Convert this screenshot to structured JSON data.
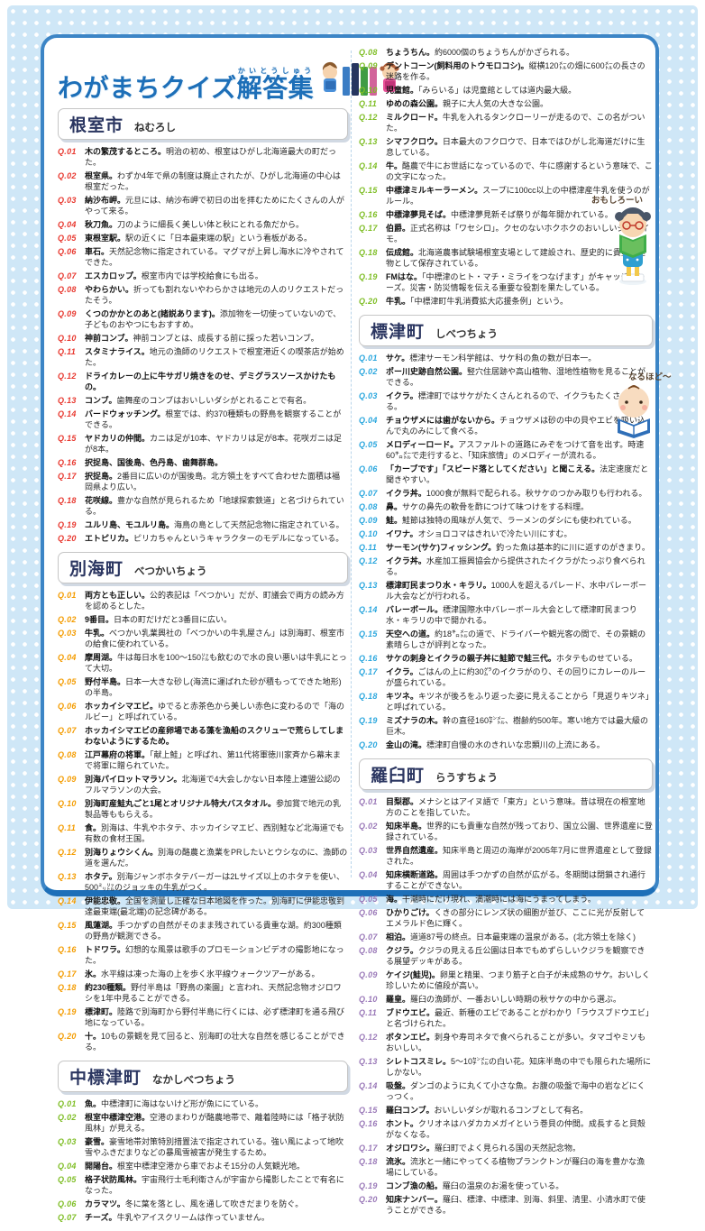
{
  "page_title": {
    "main": "わがまちクイズ",
    "ruby_base": "解答集",
    "ruby_text": "かいとうしゅう"
  },
  "mascots": {
    "girl_speech": "おもしろーい",
    "baby_speech": "なるほど〜"
  },
  "colors": {
    "panel_border": "#3c85c6",
    "title_blue": "#1d6fb8",
    "nemuro_red": "#e8382f",
    "betsukai_orange": "#f49c00",
    "nakashibetsu_green": "#7fbe26",
    "shibetsu_blue": "#2ba7de",
    "rausu_purple": "#9a79b8"
  },
  "sections": [
    {
      "name": "根室市",
      "reading": "ねむろし",
      "color": "#e8382f",
      "items": [
        {
          "no": "Q.01",
          "answer": "木の繁茂するところ。",
          "detail": "明治の初め、根室はひがし北海道最大の町だった。"
        },
        {
          "no": "Q.02",
          "answer": "根室県。",
          "detail": "わずか4年で県の制度は廃止されたが、ひがし北海道の中心は根室だった。"
        },
        {
          "no": "Q.03",
          "answer": "納沙布岬。",
          "detail": "元旦には、納沙布岬で初日の出を拝むためにたくさんの人がやって来る。"
        },
        {
          "no": "Q.04",
          "answer": "秋刀魚。",
          "detail": "刀のように細長く美しい体と秋にとれる魚だから。"
        },
        {
          "no": "Q.05",
          "answer": "東根室駅。",
          "detail": "駅の近くに「日本最東端の駅」という看板がある。"
        },
        {
          "no": "Q.06",
          "answer": "車石。",
          "detail": "天然記念物に指定されている。マグマが上昇し海水に冷やされてできた。"
        },
        {
          "no": "Q.07",
          "answer": "エスカロップ。",
          "detail": "根室市内では学校給食にも出る。"
        },
        {
          "no": "Q.08",
          "answer": "やわらかい。",
          "detail": "折っても割れないやわらかさは地元の人のリクエストだったそう。"
        },
        {
          "no": "Q.09",
          "answer": "くつのかかとのあと(諸説あります)。",
          "detail": "添加物を一切使っていないので、子どものおやつにもおすすめ。"
        },
        {
          "no": "Q.10",
          "answer": "神前コンブ。",
          "detail": "神前コンブとは、成長する前に採った若いコンブ。"
        },
        {
          "no": "Q.11",
          "answer": "スタミナライス。",
          "detail": "地元の漁師のリクエストで根室港近くの喫茶店が始めた。"
        },
        {
          "no": "Q.12",
          "answer": "ドライカレーの上に牛サガリ焼きをのせ、デミグラスソースかけたもの。",
          "detail": ""
        },
        {
          "no": "Q.13",
          "answer": "コンブ。",
          "detail": "歯舞産のコンブはおいしいダシがとれることで有名。"
        },
        {
          "no": "Q.14",
          "answer": "バードウォッチング。",
          "detail": "根室では、約370種類もの野鳥を観察することができる。"
        },
        {
          "no": "Q.15",
          "answer": "ヤドカリの仲間。",
          "detail": "カニは足が10本、ヤドカリは足が8本。花咲ガニは足が8本。"
        },
        {
          "no": "Q.16",
          "answer": "択捉島、国後島、色丹島、歯舞群島。",
          "detail": ""
        },
        {
          "no": "Q.17",
          "answer": "択捉島。",
          "detail": "2番目に広いのが国後島。北方領土をすべて合わせた面積は福岡県より広い。"
        },
        {
          "no": "Q.18",
          "answer": "花咲線。",
          "detail": "豊かな自然が見られるため「地球探索鉄道」と名づけられている。"
        },
        {
          "no": "Q.19",
          "answer": "ユルリ島、モユルリ島。",
          "detail": "海鳥の島として天然記念物に指定されている。"
        },
        {
          "no": "Q.20",
          "answer": "エトピリカ。",
          "detail": "ピリカちゃんというキャラクターのモデルになっている。"
        }
      ]
    },
    {
      "name": "別海町",
      "reading": "べつかいちょう",
      "color": "#f49c00",
      "items": [
        {
          "no": "Q.01",
          "answer": "両方とも正しい。",
          "detail": "公的表記は「べつかい」だが、町議会で両方の読み方を認めるとした。"
        },
        {
          "no": "Q.02",
          "answer": "9番目。",
          "detail": "日本の町だけだと3番目に広い。"
        },
        {
          "no": "Q.03",
          "answer": "牛乳。",
          "detail": "べつかい乳業興社の「べつかいの牛乳屋さん」は別海町、根室市の給食に使われている。"
        },
        {
          "no": "Q.04",
          "answer": "摩周湖。",
          "detail": "牛は毎日水を100〜150㍑も飲むので水の良い悪いは牛乳にとって大切。"
        },
        {
          "no": "Q.05",
          "answer": "野付半島。",
          "detail": "日本一大きな砂し(海流に運ばれた砂が積もってできた地形)の半島。"
        },
        {
          "no": "Q.06",
          "answer": "ホッカイシマエビ。",
          "detail": "ゆでると赤茶色から美しい赤色に変わるので「海のルビー」と呼ばれている。"
        },
        {
          "no": "Q.07",
          "answer": "ホッカイシマエビの産卵場である藻を漁船のスクリューで荒らしてしまわないようにするため。",
          "detail": ""
        },
        {
          "no": "Q.08",
          "answer": "江戸幕府の将軍。",
          "detail": "「献上鮭」と呼ばれ、第11代将軍徳川家斉から幕末まで将軍に贈られていた。"
        },
        {
          "no": "Q.09",
          "answer": "別海パイロットマラソン。",
          "detail": "北海道で4大会しかない日本陸上連盟公認のフルマラソンの大会。"
        },
        {
          "no": "Q.10",
          "answer": "別海町産鮭丸ごと1尾とオリジナル特大バスタオル。",
          "detail": "参加賞で地元の乳製品等ももらえる。"
        },
        {
          "no": "Q.11",
          "answer": "食。",
          "detail": "別海は、牛乳やホタテ、ホッカイシマエビ、西別鮭など北海道でも有数の食材王国。"
        },
        {
          "no": "Q.12",
          "answer": "別海りょウシくん。",
          "detail": "別海の酪農と漁業をPRしたいとウシなのに、漁師の道を選んだ。"
        },
        {
          "no": "Q.13",
          "answer": "ホタテ。",
          "detail": "別海ジャンボホタテバーガーは2Lサイズ以上のホタテを使い、500㍉㍑のジョッキの牛乳がつく。"
        },
        {
          "no": "Q.14",
          "answer": "伊能忠敬。",
          "detail": "全国を測量し正確な日本地図を作った。別海町に伊能忠敬到達最東端(最北端)の記念碑がある。"
        },
        {
          "no": "Q.15",
          "answer": "風蓮湖。",
          "detail": "手つかずの自然がそのまま残されている貴重な湖。約300種類の野鳥が観測できる。"
        },
        {
          "no": "Q.16",
          "answer": "トドワラ。",
          "detail": "幻想的な風景は歌手のプロモーションビデオの撮影地になった。"
        },
        {
          "no": "Q.17",
          "answer": "氷。",
          "detail": "水平線は凍った海の上を歩く氷平線ウォークツアーがある。"
        },
        {
          "no": "Q.18",
          "answer": "約230種類。",
          "detail": "野付半島は「野鳥の楽園」と言われ、天然記念物オジロワシを1年中見ることができる。"
        },
        {
          "no": "Q.19",
          "answer": "標津町。",
          "detail": "陸路で別海町から野付半島に行くには、必ず標津町を通る飛び地になっている。"
        },
        {
          "no": "Q.20",
          "answer": "十。",
          "detail": "10もの景観を見て回ると、別海町の壮大な自然を感じることができる。"
        }
      ]
    },
    {
      "name": "中標津町",
      "reading": "なかしべつちょう",
      "color": "#7fbe26",
      "items": [
        {
          "no": "Q.01",
          "answer": "魚。",
          "detail": "中標津町に海はないけど形が魚ににている。"
        },
        {
          "no": "Q.02",
          "answer": "根室中標津空港。",
          "detail": "空港のまわりが酪農地帯で、離着陸時には「格子状防風林」が見える。"
        },
        {
          "no": "Q.03",
          "answer": "豪雪。",
          "detail": "豪雪地帯対策特別措置法で指定されている。強い風によって地吹雪やふきだまりなどの暴風雪被害が発生するため。"
        },
        {
          "no": "Q.04",
          "answer": "開陽台。",
          "detail": "根室中標津空港から車でおよそ15分の人気観光地。"
        },
        {
          "no": "Q.05",
          "answer": "格子状防風林。",
          "detail": "宇宙飛行士毛利衛さんが宇宙から撮影したことで有名になった。"
        },
        {
          "no": "Q.06",
          "answer": "カラマツ。",
          "detail": "冬に葉を落とし、風を通して吹きだまりを防ぐ。"
        },
        {
          "no": "Q.07",
          "answer": "チーズ。",
          "detail": "牛乳やアイスクリームは作っていません。"
        },
        {
          "no": "Q.08",
          "answer": "ちょうちん。",
          "detail": "約6000個のちょうちんがかざられる。"
        },
        {
          "no": "Q.09",
          "answer": "デントコーン(飼料用のトウモロコシ)。",
          "detail": "縦横120㍍の畑に600㍍の長さの迷路を作る。"
        },
        {
          "no": "Q.10",
          "answer": "児童館。",
          "detail": "「みらいる」は児童館としては道内最大級。"
        },
        {
          "no": "Q.11",
          "answer": "ゆめの森公園。",
          "detail": "親子に大人気の大きな公園。"
        },
        {
          "no": "Q.12",
          "answer": "ミルクロード。",
          "detail": "牛乳を入れるタンクローリーが走るので、この名がついた。"
        },
        {
          "no": "Q.13",
          "answer": "シマフクロウ。",
          "detail": "日本最大のフクロウで、日本ではひがし北海道だけに生息している。"
        },
        {
          "no": "Q.14",
          "answer": "牛。",
          "detail": "酪農で牛にお世話になっているので、牛に感謝するという意味で、この文字になった。"
        },
        {
          "no": "Q.15",
          "answer": "中標津ミルキーラーメン。",
          "detail": "スープに100cc以上の中標津産牛乳を使うのがルール。"
        },
        {
          "no": "Q.16",
          "answer": "中標津夢見そば。",
          "detail": "中標津夢見新そば祭りが毎年開かれている。"
        },
        {
          "no": "Q.17",
          "answer": "伯爵。",
          "detail": "正式名称は「ワセシロ」。クセのないホクホクのおいしいジャガイモ。"
        },
        {
          "no": "Q.18",
          "answer": "伝成館。",
          "detail": "北海道農事試験場根室支場として建設され、歴史的に貴重な建物として保存されている。"
        },
        {
          "no": "Q.19",
          "answer": "FMはな。",
          "detail": "「中標津のヒト・マチ・ミライをつなげます」がキャッチフレーズ。災害・防災情報を伝える重要な役割を果たしている。"
        },
        {
          "no": "Q.20",
          "answer": "牛乳。",
          "detail": "「中標津町牛乳消費拡大応援条例」という。"
        }
      ]
    },
    {
      "name": "標津町",
      "reading": "しべつちょう",
      "color": "#2ba7de",
      "items": [
        {
          "no": "Q.01",
          "answer": "サケ。",
          "detail": "標津サーモン科学館は、サケ科の魚の数が日本一。"
        },
        {
          "no": "Q.02",
          "answer": "ポー川史跡自然公園。",
          "detail": "竪穴住居跡や高山植物、湿地性植物を見ることができる。"
        },
        {
          "no": "Q.03",
          "answer": "イクラ。",
          "detail": "標津町ではサケがたくさんとれるので、イクラもたくさんとれる。"
        },
        {
          "no": "Q.04",
          "answer": "チョウザメには歯がないから。",
          "detail": "チョウザメは砂の中の貝やエビを吸い込んで丸のみにして食べる。"
        },
        {
          "no": "Q.05",
          "answer": "メロディーロード。",
          "detail": "アスファルトの道路にみぞをつけて音を出す。時速60㌔㍍で走行すると、「知床旅情」のメロディーが流れる。"
        },
        {
          "no": "Q.06",
          "answer": "「カーブです」「スピード落としてください」と聞こえる。",
          "detail": "法定速度だと聞きやすい。"
        },
        {
          "no": "Q.07",
          "answer": "イクラ丼。",
          "detail": "1000食が無料で配られる。秋サケのつかみ取りも行われる。"
        },
        {
          "no": "Q.08",
          "answer": "鼻。",
          "detail": "サケの鼻先の軟骨を酢につけて味つけをする料理。"
        },
        {
          "no": "Q.09",
          "answer": "鮭。",
          "detail": "鮭節は独特の風味が人気で、ラーメンのダシにも使われている。"
        },
        {
          "no": "Q.10",
          "answer": "イワナ。",
          "detail": "オショロコマはきれいで冷たい川にすむ。"
        },
        {
          "no": "Q.11",
          "answer": "サーモン(サケ)フィッシング。",
          "detail": "釣った魚は基本的に川に返すのがきまり。"
        },
        {
          "no": "Q.12",
          "answer": "イクラ丼。",
          "detail": "水産加工振興協会から提供されたイクラがたっぷり食べられる。"
        },
        {
          "no": "Q.13",
          "answer": "標津町民まつり水・キラリ。",
          "detail": "1000人を超えるパレード、水中バレーボール大会などが行われる。"
        },
        {
          "no": "Q.14",
          "answer": "バレーボール。",
          "detail": "標津国際水中バレーボール大会として標津町民まつり水・キラリの中で開かれる。"
        },
        {
          "no": "Q.15",
          "answer": "天空への道。",
          "detail": "約18㌔㍍の道で、ドライバーや観光客の間で、その景観の素晴らしさが評判となった。"
        },
        {
          "no": "Q.16",
          "answer": "サケの刺身とイクラの親子丼に鮭節で鮭三代。",
          "detail": "ホタテものせている。"
        },
        {
          "no": "Q.17",
          "answer": "イクラ。",
          "detail": "ごはんの上に約30㌘のイクラがのり、その回りにカレーのルーが盛られている。"
        },
        {
          "no": "Q.18",
          "answer": "キツネ。",
          "detail": "キツネが後ろをふり返った姿に見えることから「見返りキツネ」と呼ばれている。"
        },
        {
          "no": "Q.19",
          "answer": "ミズナラの木。",
          "detail": "幹の直径160㌢㍍、樹齢約500年。寒い地方では最大級の巨木。"
        },
        {
          "no": "Q.20",
          "answer": "金山の滝。",
          "detail": "標津町自慢の水のきれいな忠類川の上流にある。"
        }
      ]
    },
    {
      "name": "羅臼町",
      "reading": "らうすちょう",
      "color": "#9a79b8",
      "items": [
        {
          "no": "Q.01",
          "answer": "目梨郡。",
          "detail": "メナシとはアイヌ語で「東方」という意味。昔は現在の根室地方のことを指していた。"
        },
        {
          "no": "Q.02",
          "answer": "知床半島。",
          "detail": "世界的にも貴重な自然が残っており、国立公園、世界遺産に登録されている。"
        },
        {
          "no": "Q.03",
          "answer": "世界自然遺産。",
          "detail": "知床半島と周辺の海岸が2005年7月に世界遺産として登録された。"
        },
        {
          "no": "Q.04",
          "answer": "知床横断道路。",
          "detail": "周囲は手つかずの自然が広がる。冬期間は閉鎖され通行することができない。"
        },
        {
          "no": "Q.05",
          "answer": "海。",
          "detail": "干潮時にだけ現れ、満潮時には海にうまってしまう。"
        },
        {
          "no": "Q.06",
          "answer": "ひかりごけ。",
          "detail": "くきの部分にレンズ状の細胞が並び、ここに光が反射してエメラルド色に輝く。"
        },
        {
          "no": "Q.07",
          "answer": "相泊。",
          "detail": "道道87号の終点。日本最東端の温泉がある。(北方領土を除く)"
        },
        {
          "no": "Q.08",
          "answer": "クジラ。",
          "detail": "クジラの見える丘公園は日本でもめずらしいクジラを観察できる展望デッキがある。"
        },
        {
          "no": "Q.09",
          "answer": "ケイジ(鮭児)。",
          "detail": "卵巣と精巣、つまり筋子と白子が未成熟のサケ。おいしく珍しいために値段が高い。"
        },
        {
          "no": "Q.10",
          "answer": "羅皇。",
          "detail": "羅臼の漁師が、一番おいしい時期の秋サケの中から選ぶ。"
        },
        {
          "no": "Q.11",
          "answer": "ブドウエビ。",
          "detail": "最近、新種のエビであることがわかり「ラウスブドウエビ」と名づけられた。"
        },
        {
          "no": "Q.12",
          "answer": "ボタンエビ。",
          "detail": "刺身や寿司ネタで食べられることが多い。タマゴやミソもおいしい。"
        },
        {
          "no": "Q.13",
          "answer": "シレトコスミレ。",
          "detail": "5〜10㌢㍍の白い花。知床半島の中でも限られた場所にしかない。"
        },
        {
          "no": "Q.14",
          "answer": "吸盤。",
          "detail": "ダンゴのように丸くて小さな魚。お腹の吸盤で海中の岩などにくっつく。"
        },
        {
          "no": "Q.15",
          "answer": "羅臼コンブ。",
          "detail": "おいしいダシが取れるコンブとして有名。"
        },
        {
          "no": "Q.16",
          "answer": "ホント。",
          "detail": "クリオネはハダカカメガイという巻貝の仲間。成長すると貝殻がなくなる。"
        },
        {
          "no": "Q.17",
          "answer": "オジロワシ。",
          "detail": "羅臼町でよく見られる国の天然記念物。"
        },
        {
          "no": "Q.18",
          "answer": "流氷。",
          "detail": "流氷と一緒にやってくる植物プランクトンが羅臼の海を豊かな漁場にしている。"
        },
        {
          "no": "Q.19",
          "answer": "コンブ漁の船。",
          "detail": "羅臼の温泉のお湯を使っている。"
        },
        {
          "no": "Q.20",
          "answer": "知床ナンバー。",
          "detail": "羅臼、標津、中標津、別海、斜里、清里、小清水町で使うことができる。"
        }
      ]
    }
  ]
}
